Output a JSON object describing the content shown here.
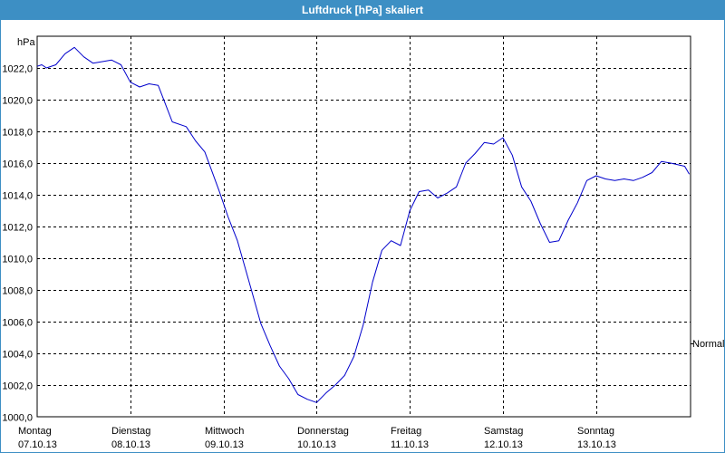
{
  "window": {
    "title": "Luftdruck [hPa] skaliert"
  },
  "chart_data": {
    "type": "line",
    "title": "Luftdruck [hPa] skaliert",
    "ylabel": "hPa",
    "xlabel": "",
    "ylim": [
      1000,
      1024
    ],
    "grid": true,
    "reference_label": "Normal",
    "y_ticks": [
      "1000,0",
      "1002,0",
      "1004,0",
      "1006,0",
      "1008,0",
      "1010,0",
      "1012,0",
      "1014,0",
      "1016,0",
      "1018,0",
      "1020,0",
      "1022,0"
    ],
    "y_tick_values": [
      1000,
      1002,
      1004,
      1006,
      1008,
      1010,
      1012,
      1014,
      1016,
      1018,
      1020,
      1022
    ],
    "x_ticks": [
      {
        "day": "Montag",
        "date": "07.10.13"
      },
      {
        "day": "Dienstag",
        "date": "08.10.13"
      },
      {
        "day": "Mittwoch",
        "date": "09.10.13"
      },
      {
        "day": "Donnerstag",
        "date": "10.10.13"
      },
      {
        "day": "Freitag",
        "date": "11.10.13"
      },
      {
        "day": "Samstag",
        "date": "12.10.13"
      },
      {
        "day": "Sonntag",
        "date": "13.10.13"
      }
    ],
    "series": [
      {
        "color": "#0000cc",
        "x": [
          0,
          0.05,
          0.1,
          0.2,
          0.3,
          0.4,
          0.5,
          0.6,
          0.7,
          0.8,
          0.9,
          1.0,
          1.1,
          1.2,
          1.3,
          1.45,
          1.6,
          1.7,
          1.8,
          1.95,
          2.05,
          2.15,
          2.3,
          2.4,
          2.5,
          2.6,
          2.7,
          2.8,
          2.9,
          3.0,
          3.1,
          3.2,
          3.3,
          3.4,
          3.5,
          3.6,
          3.7,
          3.8,
          3.9,
          4.0,
          4.1,
          4.2,
          4.3,
          4.4,
          4.5,
          4.6,
          4.7,
          4.8,
          4.9,
          5.0,
          5.1,
          5.2,
          5.3,
          5.4,
          5.5,
          5.6,
          5.7,
          5.8,
          5.9,
          6.0,
          6.1,
          6.2,
          6.3,
          6.4,
          6.5,
          6.6,
          6.7,
          6.8,
          6.95,
          7.0
        ],
        "values": [
          1022.1,
          1022.2,
          1022.0,
          1022.2,
          1022.9,
          1023.3,
          1022.7,
          1022.3,
          1022.4,
          1022.5,
          1022.2,
          1021.1,
          1020.8,
          1021.0,
          1020.9,
          1018.6,
          1018.3,
          1017.4,
          1016.7,
          1014.3,
          1012.6,
          1011.1,
          1008.0,
          1005.9,
          1004.5,
          1003.2,
          1002.4,
          1001.4,
          1001.1,
          1000.9,
          1001.5,
          1002.0,
          1002.6,
          1003.8,
          1005.8,
          1008.5,
          1010.5,
          1011.1,
          1010.8,
          1013.0,
          1014.2,
          1014.3,
          1013.8,
          1014.1,
          1014.5,
          1016.0,
          1016.6,
          1017.3,
          1017.2,
          1017.6,
          1016.5,
          1014.5,
          1013.6,
          1012.2,
          1011.0,
          1011.1,
          1012.4,
          1013.5,
          1014.9,
          1015.2,
          1015.0,
          1014.9,
          1015.0,
          1014.9,
          1015.1,
          1015.4,
          1016.1,
          1016.0,
          1015.8,
          1015.3
        ]
      }
    ]
  }
}
